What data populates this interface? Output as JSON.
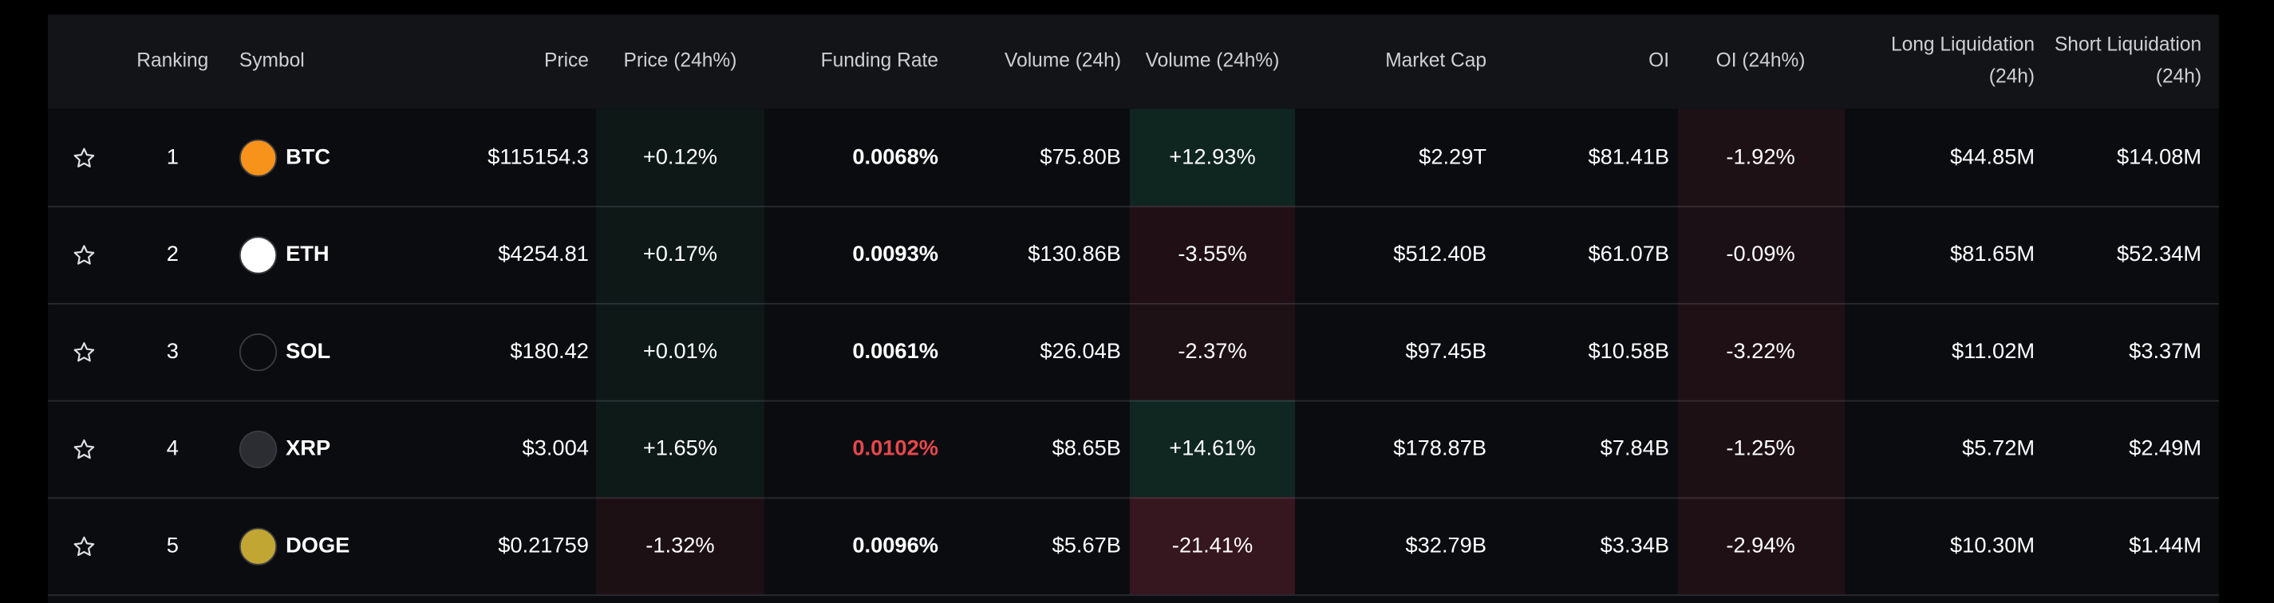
{
  "table": {
    "header": [
      "Ranking",
      "Symbol",
      "Price",
      "Price (24h%)",
      "Funding Rate",
      "Volume (24h)",
      "Volume (24h%)",
      "Market Cap",
      "OI",
      "OI (24h%)",
      "Long Liquidation (24h)",
      "Short Liquidation (24h)"
    ],
    "rows": [
      {
        "rank": "1",
        "symbol": "BTC",
        "icon_color": "#f7931a",
        "price": "$115154.3",
        "price_change": "+0.12%",
        "funding_rate": "0.0068%",
        "funding_color": "#ffffff",
        "volume": "$75.80B",
        "volume_change": "+12.93%",
        "market_cap": "$2.29T",
        "oi": "$81.41B",
        "oi_change": "-1.92%",
        "long_liq": "$44.85M",
        "short_liq": "$14.08M"
      },
      {
        "rank": "2",
        "symbol": "ETH",
        "icon_color": "#ffffff",
        "price": "$4254.81",
        "price_change": "+0.17%",
        "funding_rate": "0.0093%",
        "funding_color": "#ffffff",
        "volume": "$130.86B",
        "volume_change": "-3.55%",
        "market_cap": "$512.40B",
        "oi": "$61.07B",
        "oi_change": "-0.09%",
        "long_liq": "$81.65M",
        "short_liq": "$52.34M"
      },
      {
        "rank": "3",
        "symbol": "SOL",
        "icon_color": "#0b0c10",
        "price": "$180.42",
        "price_change": "+0.01%",
        "funding_rate": "0.0061%",
        "funding_color": "#ffffff",
        "volume": "$26.04B",
        "volume_change": "-2.37%",
        "market_cap": "$97.45B",
        "oi": "$10.58B",
        "oi_change": "-3.22%",
        "long_liq": "$11.02M",
        "short_liq": "$3.37M"
      },
      {
        "rank": "4",
        "symbol": "XRP",
        "icon_color": "#2b2d33",
        "price": "$3.004",
        "price_change": "+1.65%",
        "funding_rate": "0.0102%",
        "funding_color": "#e5484d",
        "volume": "$8.65B",
        "volume_change": "+14.61%",
        "market_cap": "$178.87B",
        "oi": "$7.84B",
        "oi_change": "-1.25%",
        "long_liq": "$5.72M",
        "short_liq": "$2.49M"
      },
      {
        "rank": "5",
        "symbol": "DOGE",
        "icon_color": "#c2a633",
        "price": "$0.21759",
        "price_change": "-1.32%",
        "funding_rate": "0.0096%",
        "funding_color": "#ffffff",
        "volume": "$5.67B",
        "volume_change": "-21.41%",
        "market_cap": "$32.79B",
        "oi": "$3.34B",
        "oi_change": "-2.94%",
        "long_liq": "$10.30M",
        "short_liq": "$1.44M"
      }
    ]
  }
}
